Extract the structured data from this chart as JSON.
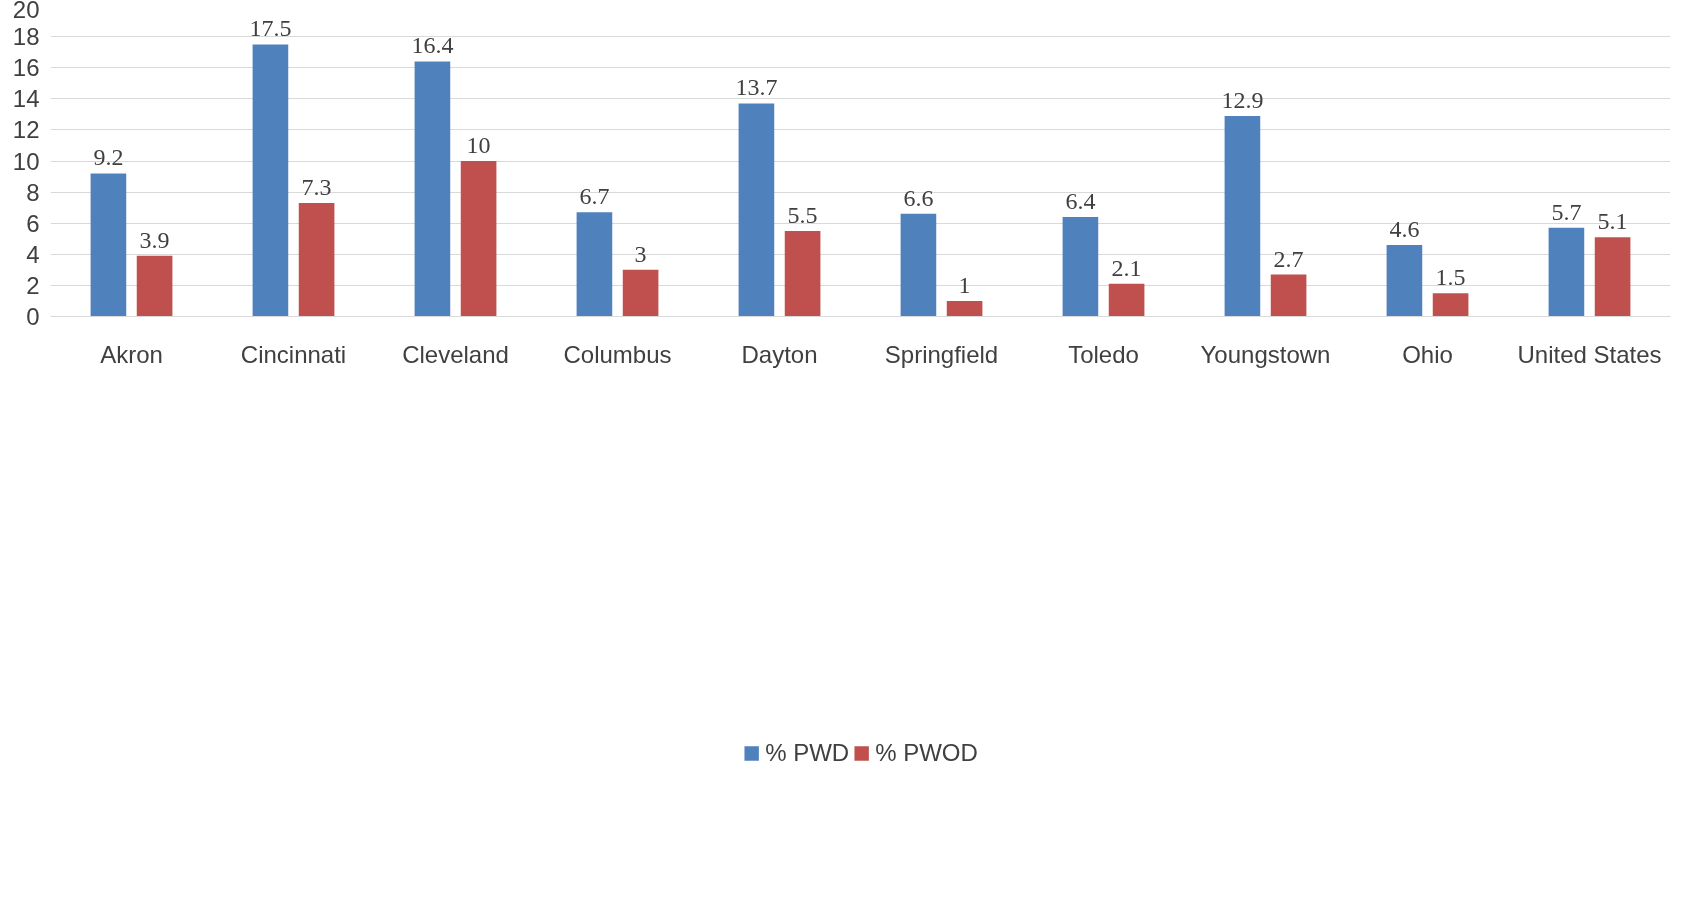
{
  "chart_data": {
    "type": "bar",
    "categories": [
      "Akron",
      "Cincinnati",
      "Cleveland",
      "Columbus",
      "Dayton",
      "Springfield",
      "Toledo",
      "Youngstown",
      "Ohio",
      "United States"
    ],
    "series": [
      {
        "name": "% PWD",
        "color": "#4f81bd",
        "values": [
          9.2,
          17.5,
          16.4,
          6.7,
          13.7,
          6.6,
          6.4,
          12.9,
          4.6,
          5.7
        ]
      },
      {
        "name": "% PWOD",
        "color": "#c0504d",
        "values": [
          3.9,
          7.3,
          10,
          3,
          5.5,
          1,
          2.1,
          2.7,
          1.5,
          5.1
        ]
      }
    ],
    "ylim": [
      0,
      20
    ],
    "yticks": [
      0,
      2,
      4,
      6,
      8,
      10,
      12,
      14,
      16,
      18,
      20
    ],
    "grid": "y",
    "legend": "bottom",
    "data_labels": true
  }
}
